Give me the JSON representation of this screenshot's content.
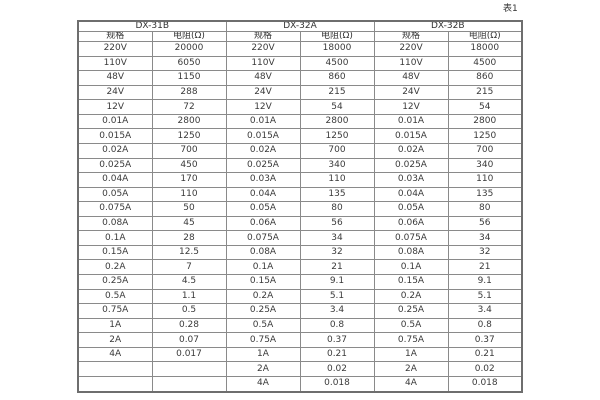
{
  "page": {
    "table_label": "表1"
  },
  "colors": {
    "background": "#ffffff",
    "inner_border": "#8a8a8a",
    "outer_border": "#6e6e6e",
    "text": "#3a3a3a"
  },
  "table": {
    "groups": [
      {
        "name": "DX-31B"
      },
      {
        "name": "DX-32A"
      },
      {
        "name": "DX-32B"
      }
    ],
    "subheader": {
      "spec": "规格",
      "resistance": "电阻(Ω)"
    },
    "rows": [
      [
        "220V",
        "20000",
        "220V",
        "18000",
        "220V",
        "18000"
      ],
      [
        "110V",
        "6050",
        "110V",
        "4500",
        "110V",
        "4500"
      ],
      [
        "48V",
        "1150",
        "48V",
        "860",
        "48V",
        "860"
      ],
      [
        "24V",
        "288",
        "24V",
        "215",
        "24V",
        "215"
      ],
      [
        "12V",
        "72",
        "12V",
        "54",
        "12V",
        "54"
      ],
      [
        "0.01A",
        "2800",
        "0.01A",
        "2800",
        "0.01A",
        "2800"
      ],
      [
        "0.015A",
        "1250",
        "0.015A",
        "1250",
        "0.015A",
        "1250"
      ],
      [
        "0.02A",
        "700",
        "0.02A",
        "700",
        "0.02A",
        "700"
      ],
      [
        "0.025A",
        "450",
        "0.025A",
        "340",
        "0.025A",
        "340"
      ],
      [
        "0.04A",
        "170",
        "0.03A",
        "110",
        "0.03A",
        "110"
      ],
      [
        "0.05A",
        "110",
        "0.04A",
        "135",
        "0.04A",
        "135"
      ],
      [
        "0.075A",
        "50",
        "0.05A",
        "80",
        "0.05A",
        "80"
      ],
      [
        "0.08A",
        "45",
        "0.06A",
        "56",
        "0.06A",
        "56"
      ],
      [
        "0.1A",
        "28",
        "0.075A",
        "34",
        "0.075A",
        "34"
      ],
      [
        "0.15A",
        "12.5",
        "0.08A",
        "32",
        "0.08A",
        "32"
      ],
      [
        "0.2A",
        "7",
        "0.1A",
        "21",
        "0.1A",
        "21"
      ],
      [
        "0.25A",
        "4.5",
        "0.15A",
        "9.1",
        "0.15A",
        "9.1"
      ],
      [
        "0.5A",
        "1.1",
        "0.2A",
        "5.1",
        "0.2A",
        "5.1"
      ],
      [
        "0.75A",
        "0.5",
        "0.25A",
        "3.4",
        "0.25A",
        "3.4"
      ],
      [
        "1A",
        "0.28",
        "0.5A",
        "0.8",
        "0.5A",
        "0.8"
      ],
      [
        "2A",
        "0.07",
        "0.75A",
        "0.37",
        "0.75A",
        "0.37"
      ],
      [
        "4A",
        "0.017",
        "1A",
        "0.21",
        "1A",
        "0.21"
      ],
      [
        "",
        "",
        "2A",
        "0.02",
        "2A",
        "0.02"
      ],
      [
        "",
        "",
        "4A",
        "0.018",
        "4A",
        "0.018"
      ]
    ]
  }
}
